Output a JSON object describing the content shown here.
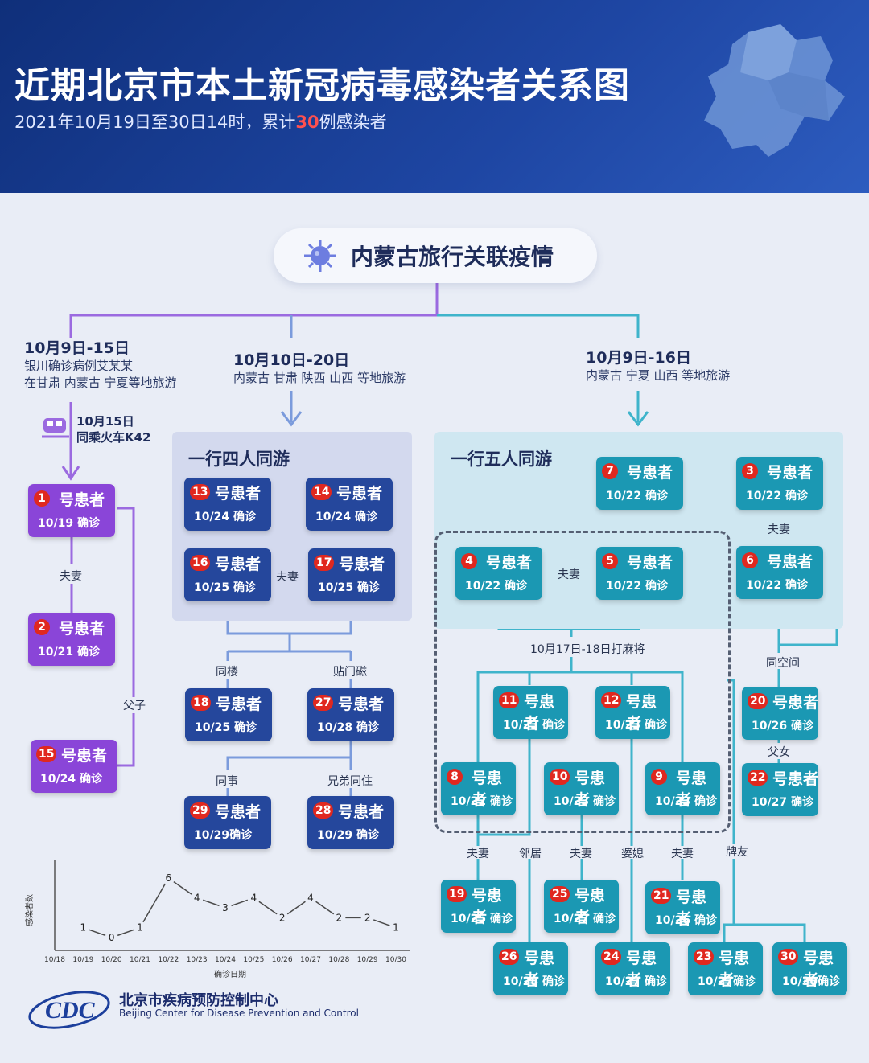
{
  "header": {
    "title": "近期北京市本土新冠病毒感染者关系图",
    "subtitle_pre": "2021年10月19日至30日14时，累计",
    "subtitle_count": "30",
    "subtitle_post": "例感染者"
  },
  "root": {
    "label": "内蒙古旅行关联疫情"
  },
  "trips": [
    {
      "date": "10月9日-15日",
      "line1": "银川确诊病例艾某某",
      "line2": "在甘肃 内蒙古 宁夏等地旅游"
    },
    {
      "date": "10月10日-20日",
      "line1": "内蒙古 甘肃 陕西 山西 等地旅游"
    },
    {
      "date": "10月9日-16日",
      "line1": "内蒙古 宁夏 山西 等地旅游"
    }
  ],
  "train_note": {
    "line1": "10月15日",
    "line2": "同乘火车K42"
  },
  "groups": {
    "four": "一行四人同游",
    "five": "一行五人同游",
    "mahjong": "10月17日-18日打麻将"
  },
  "suffix": "号患者",
  "patients": {
    "p1": {
      "num": "1",
      "date": "10/19 确诊"
    },
    "p2": {
      "num": "2",
      "date": "10/21 确诊"
    },
    "p15": {
      "num": "15",
      "date": "10/24 确诊"
    },
    "p13": {
      "num": "13",
      "date": "10/24 确诊"
    },
    "p14": {
      "num": "14",
      "date": "10/24 确诊"
    },
    "p16": {
      "num": "16",
      "date": "10/25 确诊"
    },
    "p17": {
      "num": "17",
      "date": "10/25 确诊"
    },
    "p18": {
      "num": "18",
      "date": "10/25 确诊"
    },
    "p27": {
      "num": "27",
      "date": "10/28 确诊"
    },
    "p29": {
      "num": "29",
      "date": "10/29确诊"
    },
    "p28": {
      "num": "28",
      "date": "10/29 确诊"
    },
    "p7": {
      "num": "7",
      "date": "10/22 确诊"
    },
    "p3": {
      "num": "3",
      "date": "10/22 确诊"
    },
    "p6": {
      "num": "6",
      "date": "10/22 确诊"
    },
    "p4": {
      "num": "4",
      "date": "10/22 确诊"
    },
    "p5": {
      "num": "5",
      "date": "10/22 确诊"
    },
    "p11": {
      "num": "11",
      "date": "10/23 确诊"
    },
    "p12": {
      "num": "12",
      "date": "10/23 确诊"
    },
    "p8": {
      "num": "8",
      "date": "10/22 确诊"
    },
    "p10": {
      "num": "10",
      "date": "10/23 确诊"
    },
    "p9": {
      "num": "9",
      "date": "10/23 确诊"
    },
    "p20": {
      "num": "20",
      "date": "10/26 确诊"
    },
    "p22": {
      "num": "22",
      "date": "10/27 确诊"
    },
    "p19": {
      "num": "19",
      "date": "10/25 确诊"
    },
    "p25": {
      "num": "25",
      "date": "10/27 确诊"
    },
    "p21": {
      "num": "21",
      "date": "10/26 确诊"
    },
    "p26": {
      "num": "26",
      "date": "10/28 确诊"
    },
    "p24": {
      "num": "24",
      "date": "10/27 确诊"
    },
    "p23": {
      "num": "23",
      "date": "10/27确诊"
    },
    "p30": {
      "num": "30",
      "date": "10/30确诊"
    }
  },
  "relations": {
    "fuqi": "夫妻",
    "fuzi": "父子",
    "funv": "父女",
    "tonglou": "同楼",
    "tiemenci": "贴门磁",
    "tongshi": "同事",
    "xiongdi": "兄弟同住",
    "tongkongjian": "同空间",
    "linju": "邻居",
    "poxi": "婆媳",
    "paiyou": "牌友"
  },
  "chart_data": {
    "type": "line",
    "categories": [
      "10/18",
      "10/19",
      "10/20",
      "10/21",
      "10/22",
      "10/23",
      "10/24",
      "10/25",
      "10/26",
      "10/27",
      "10/28",
      "10/29",
      "10/30"
    ],
    "values": [
      null,
      1,
      0,
      1,
      6,
      4,
      3,
      4,
      2,
      4,
      2,
      2,
      1
    ],
    "xlabel": "确诊日期",
    "ylabel": "感染者数",
    "color": "#4a4a4a"
  },
  "footer": {
    "org_cn": "北京市疾病预防控制中心",
    "org_en": "Beijing Center for Disease Prevention and Control",
    "logo_text": "CDC"
  },
  "colors": {
    "header": "#1e46a3",
    "purple": "#8a45d8",
    "blue": "#25479c",
    "teal": "#1b98b3",
    "badge": "#e0281f"
  }
}
